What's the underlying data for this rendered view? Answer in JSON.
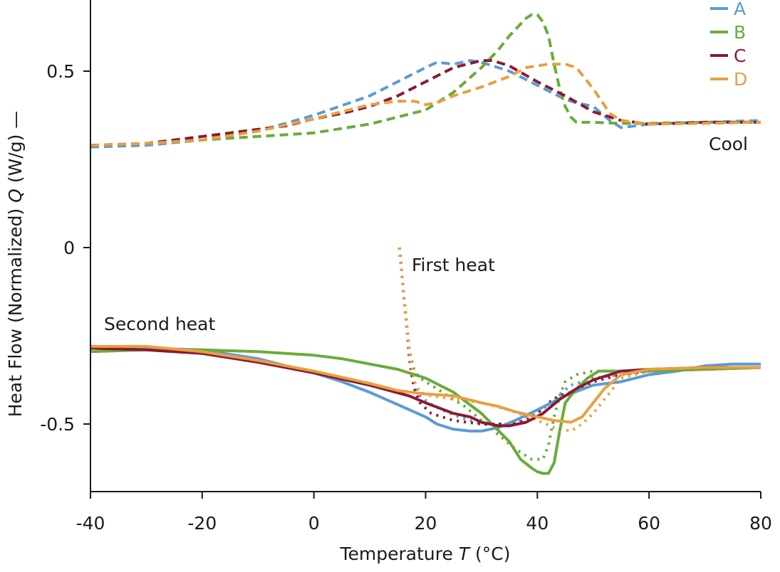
{
  "chart_data": {
    "type": "line",
    "title": "",
    "xlabel_prefix": "Temperature ",
    "xlabel_symbol": "T",
    "xlabel_suffix": " (°C)",
    "ylabel_prefix": "Heat Flow (Normalized) ",
    "ylabel_symbol": "Q",
    "ylabel_suffix": " (W/g) —",
    "xlim": [
      -40,
      80
    ],
    "ylim": [
      -0.69,
      0.7
    ],
    "xticks": [
      -40,
      -20,
      0,
      20,
      40,
      60,
      80
    ],
    "xtick_labels": [
      "-40",
      "-20",
      "0",
      "20",
      "40",
      "60",
      "80"
    ],
    "yticks": [
      0.5,
      0,
      -0.5
    ],
    "ytick_labels": [
      "0.5",
      "0",
      "-0.5"
    ],
    "grid": false,
    "legend_position": "top-right",
    "legend": [
      {
        "name": "A",
        "color": "#5b9bd5"
      },
      {
        "name": "B",
        "color": "#6aab3a"
      },
      {
        "name": "C",
        "color": "#8b1a32"
      },
      {
        "name": "D",
        "color": "#e8a040"
      }
    ],
    "annotations": {
      "cool": "Cool",
      "first_heat": "First heat",
      "second_heat": "Second heat"
    },
    "series": [
      {
        "name": "A",
        "segment": "Cool",
        "style": "dashed",
        "color": "#5b9bd5",
        "x": [
          -40,
          -30,
          -20,
          -10,
          0,
          10,
          20,
          22,
          25,
          28,
          30,
          35,
          40,
          45,
          47,
          50,
          53,
          55,
          60,
          70,
          80
        ],
        "y": [
          0.285,
          0.29,
          0.305,
          0.33,
          0.375,
          0.43,
          0.51,
          0.525,
          0.52,
          0.53,
          0.525,
          0.5,
          0.46,
          0.42,
          0.41,
          0.4,
          0.36,
          0.34,
          0.35,
          0.355,
          0.36
        ]
      },
      {
        "name": "B",
        "segment": "Cool",
        "style": "dashed",
        "color": "#6aab3a",
        "x": [
          -40,
          -30,
          -20,
          -10,
          0,
          10,
          20,
          25,
          30,
          33,
          35,
          38,
          39,
          40,
          41,
          42,
          43,
          44,
          45,
          46,
          47,
          50,
          55,
          60,
          70,
          80
        ],
        "y": [
          0.29,
          0.295,
          0.305,
          0.315,
          0.325,
          0.35,
          0.39,
          0.44,
          0.51,
          0.56,
          0.6,
          0.65,
          0.66,
          0.66,
          0.64,
          0.6,
          0.52,
          0.45,
          0.4,
          0.37,
          0.355,
          0.355,
          0.352,
          0.352,
          0.355,
          0.355
        ]
      },
      {
        "name": "C",
        "segment": "Cool",
        "style": "dashed",
        "color": "#8b1a32",
        "x": [
          -40,
          -30,
          -25,
          -20,
          -15,
          -10,
          -5,
          0,
          5,
          10,
          15,
          20,
          25,
          30,
          32,
          35,
          40,
          45,
          50,
          55,
          60,
          70,
          80
        ],
        "y": [
          0.29,
          0.295,
          0.305,
          0.315,
          0.325,
          0.335,
          0.345,
          0.365,
          0.38,
          0.4,
          0.43,
          0.47,
          0.51,
          0.53,
          0.53,
          0.515,
          0.47,
          0.43,
          0.385,
          0.36,
          0.35,
          0.355,
          0.355
        ]
      },
      {
        "name": "D",
        "segment": "Cool",
        "style": "dashed",
        "color": "#e8a040",
        "x": [
          -40,
          -30,
          -20,
          -10,
          0,
          10,
          15,
          18,
          20,
          22,
          25,
          30,
          35,
          38,
          40,
          42,
          45,
          47,
          50,
          53,
          55,
          60,
          70,
          80
        ],
        "y": [
          0.29,
          0.295,
          0.305,
          0.33,
          0.365,
          0.405,
          0.415,
          0.415,
          0.405,
          0.41,
          0.43,
          0.455,
          0.485,
          0.51,
          0.515,
          0.52,
          0.52,
          0.51,
          0.45,
          0.38,
          0.36,
          0.35,
          0.352,
          0.355
        ]
      },
      {
        "name": "A",
        "segment": "First heat",
        "style": "dotted",
        "color": "#5b9bd5",
        "x": [
          15.3,
          15.6,
          16.0,
          16.5,
          17.0,
          17.5,
          18.0,
          19.0,
          20.5,
          23,
          26,
          30,
          35,
          40,
          43,
          46,
          50,
          55,
          60,
          70,
          80
        ],
        "y": [
          0.0,
          -0.05,
          -0.12,
          -0.2,
          -0.28,
          -0.34,
          -0.38,
          -0.42,
          -0.44,
          -0.46,
          -0.48,
          -0.5,
          -0.5,
          -0.47,
          -0.43,
          -0.39,
          -0.37,
          -0.36,
          -0.35,
          -0.345,
          -0.34
        ]
      },
      {
        "name": "B",
        "segment": "First heat",
        "style": "dotted",
        "color": "#6aab3a",
        "x": [
          15.3,
          15.6,
          16.0,
          16.5,
          17.0,
          17.5,
          18.0,
          19.0,
          21,
          24,
          27,
          30,
          33,
          36,
          39,
          41,
          42,
          43,
          44,
          45,
          47,
          50,
          55,
          60,
          70,
          80
        ],
        "y": [
          0.0,
          -0.05,
          -0.12,
          -0.2,
          -0.28,
          -0.32,
          -0.35,
          -0.37,
          -0.39,
          -0.42,
          -0.45,
          -0.49,
          -0.53,
          -0.57,
          -0.6,
          -0.6,
          -0.56,
          -0.48,
          -0.42,
          -0.38,
          -0.36,
          -0.35,
          -0.35,
          -0.35,
          -0.345,
          -0.34
        ]
      },
      {
        "name": "C",
        "segment": "First heat",
        "style": "dotted",
        "color": "#8b1a32",
        "x": [
          15.3,
          15.6,
          16.0,
          16.5,
          17.0,
          17.5,
          18.0,
          19.0,
          21,
          25,
          30,
          35,
          38,
          40,
          42,
          44,
          46,
          50,
          55,
          60,
          70,
          80
        ],
        "y": [
          0.0,
          -0.05,
          -0.12,
          -0.2,
          -0.3,
          -0.36,
          -0.4,
          -0.44,
          -0.47,
          -0.49,
          -0.5,
          -0.5,
          -0.49,
          -0.47,
          -0.44,
          -0.42,
          -0.41,
          -0.38,
          -0.36,
          -0.35,
          -0.345,
          -0.34
        ]
      },
      {
        "name": "D",
        "segment": "First heat",
        "style": "dotted",
        "color": "#e8a040",
        "x": [
          15.3,
          15.6,
          16.0,
          16.5,
          17.0,
          17.5,
          18.0,
          19.0,
          21,
          25,
          30,
          35,
          40,
          43,
          46,
          48,
          50,
          53,
          55,
          60,
          70,
          80
        ],
        "y": [
          0.0,
          -0.05,
          -0.12,
          -0.2,
          -0.28,
          -0.34,
          -0.38,
          -0.41,
          -0.42,
          -0.43,
          -0.44,
          -0.46,
          -0.49,
          -0.51,
          -0.52,
          -0.5,
          -0.47,
          -0.41,
          -0.37,
          -0.35,
          -0.345,
          -0.34
        ]
      },
      {
        "name": "A",
        "segment": "Second heat",
        "style": "solid",
        "color": "#5b9bd5",
        "x": [
          -40,
          -30,
          -20,
          -10,
          0,
          5,
          10,
          15,
          20,
          22,
          25,
          28,
          30,
          33,
          36,
          40,
          45,
          50,
          55,
          60,
          65,
          70,
          75,
          80
        ],
        "y": [
          -0.28,
          -0.285,
          -0.29,
          -0.315,
          -0.355,
          -0.38,
          -0.41,
          -0.445,
          -0.48,
          -0.5,
          -0.515,
          -0.52,
          -0.52,
          -0.51,
          -0.49,
          -0.46,
          -0.42,
          -0.39,
          -0.38,
          -0.36,
          -0.35,
          -0.335,
          -0.33,
          -0.33
        ]
      },
      {
        "name": "B",
        "segment": "Second heat",
        "style": "solid",
        "color": "#6aab3a",
        "x": [
          -40,
          -30,
          -20,
          -10,
          0,
          5,
          10,
          15,
          20,
          25,
          30,
          35,
          37,
          39,
          40,
          41,
          42,
          43,
          44,
          45,
          47,
          49,
          51,
          55,
          60,
          70,
          80
        ],
        "y": [
          -0.295,
          -0.29,
          -0.29,
          -0.295,
          -0.305,
          -0.315,
          -0.33,
          -0.345,
          -0.37,
          -0.41,
          -0.47,
          -0.55,
          -0.6,
          -0.625,
          -0.635,
          -0.64,
          -0.64,
          -0.61,
          -0.52,
          -0.44,
          -0.4,
          -0.37,
          -0.35,
          -0.35,
          -0.35,
          -0.345,
          -0.34
        ]
      },
      {
        "name": "C",
        "segment": "Second heat",
        "style": "solid",
        "color": "#8b1a32",
        "x": [
          -40,
          -30,
          -20,
          -10,
          0,
          10,
          17,
          20,
          25,
          28,
          30,
          33,
          35,
          38,
          41,
          44,
          47,
          50,
          55,
          60,
          70,
          80
        ],
        "y": [
          -0.285,
          -0.29,
          -0.3,
          -0.325,
          -0.355,
          -0.39,
          -0.42,
          -0.44,
          -0.47,
          -0.48,
          -0.495,
          -0.505,
          -0.505,
          -0.495,
          -0.47,
          -0.43,
          -0.4,
          -0.375,
          -0.35,
          -0.345,
          -0.34,
          -0.34
        ]
      },
      {
        "name": "D",
        "segment": "Second heat",
        "style": "solid",
        "color": "#e8a040",
        "x": [
          -40,
          -35,
          -30,
          -20,
          -10,
          0,
          10,
          15,
          20,
          25,
          30,
          33,
          36,
          40,
          43,
          46,
          48,
          50,
          52,
          55,
          60,
          70,
          80
        ],
        "y": [
          -0.28,
          -0.28,
          -0.28,
          -0.295,
          -0.32,
          -0.35,
          -0.385,
          -0.405,
          -0.415,
          -0.42,
          -0.44,
          -0.45,
          -0.465,
          -0.48,
          -0.49,
          -0.495,
          -0.48,
          -0.44,
          -0.4,
          -0.36,
          -0.345,
          -0.34,
          -0.34
        ]
      }
    ]
  }
}
